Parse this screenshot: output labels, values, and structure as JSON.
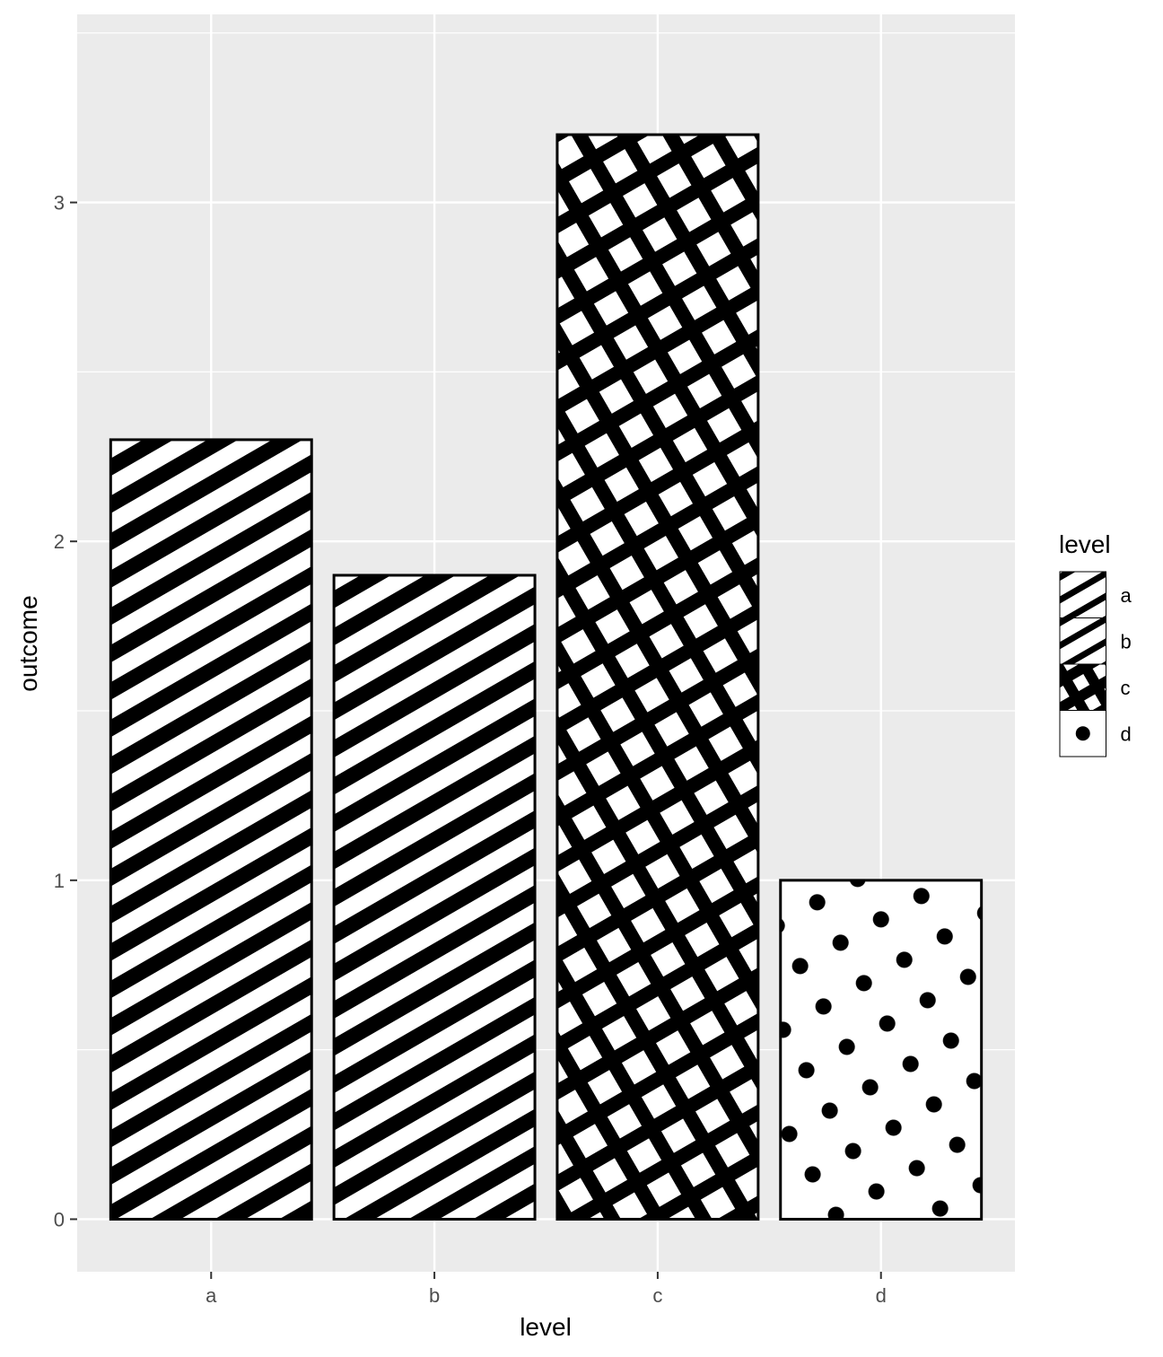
{
  "chart_data": {
    "type": "bar",
    "categories": [
      "a",
      "b",
      "c",
      "d"
    ],
    "values": [
      2.3,
      1.9,
      3.2,
      1.0
    ],
    "patterns": [
      "stripe",
      "stripe",
      "crosshatch",
      "circle"
    ],
    "xlabel": "level",
    "ylabel": "outcome",
    "ylim": [
      -0.155,
      3.555
    ],
    "yticks": [
      0,
      1,
      2,
      3
    ],
    "grid": true,
    "legend": {
      "title": "level",
      "position": "right",
      "entries": [
        "a",
        "b",
        "c",
        "d"
      ]
    },
    "colors": {
      "panel": "#ebebeb",
      "grid": "#ffffff",
      "bar_fill": "#ffffff",
      "pattern": "#000000"
    }
  }
}
